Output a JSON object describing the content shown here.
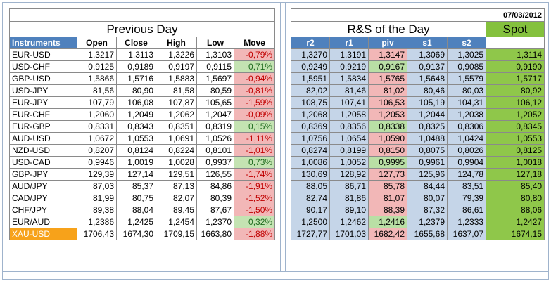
{
  "left": {
    "title": "Previous Day",
    "headers": [
      "Instruments",
      "Open",
      "Close",
      "High",
      "Low",
      "Move"
    ]
  },
  "right": {
    "title": "R&S of the Day",
    "spot_title": "Spot",
    "date": "07/03/2012",
    "headers": [
      "r2",
      "r1",
      "piv",
      "s1",
      "s2"
    ]
  },
  "rows": [
    {
      "inst": "EUR-USD",
      "open": "1,3217",
      "close": "1,3113",
      "high": "1,3226",
      "low": "1,3103",
      "move": "-0,79%",
      "r2": "1,3270",
      "r1": "1,3191",
      "piv": "1,3147",
      "s1": "1,3069",
      "s2": "1,3025",
      "spot": "1,3114"
    },
    {
      "inst": "USD-CHF",
      "open": "0,9125",
      "close": "0,9189",
      "high": "0,9197",
      "low": "0,9115",
      "move": "0,71%",
      "r2": "0,9249",
      "r1": "0,9219",
      "piv": "0,9167",
      "s1": "0,9137",
      "s2": "0,9085",
      "spot": "0,9190"
    },
    {
      "inst": "GBP-USD",
      "open": "1,5866",
      "close": "1,5716",
      "high": "1,5883",
      "low": "1,5697",
      "move": "-0,94%",
      "r2": "1,5951",
      "r1": "1,5834",
      "piv": "1,5765",
      "s1": "1,5648",
      "s2": "1,5579",
      "spot": "1,5717"
    },
    {
      "inst": "USD-JPY",
      "open": "81,56",
      "close": "80,90",
      "high": "81,58",
      "low": "80,59",
      "move": "-0,81%",
      "r2": "82,02",
      "r1": "81,46",
      "piv": "81,02",
      "s1": "80,46",
      "s2": "80,03",
      "spot": "80,92"
    },
    {
      "inst": "EUR-JPY",
      "open": "107,79",
      "close": "106,08",
      "high": "107,87",
      "low": "105,65",
      "move": "-1,59%",
      "r2": "108,75",
      "r1": "107,41",
      "piv": "106,53",
      "s1": "105,19",
      "s2": "104,31",
      "spot": "106,12"
    },
    {
      "inst": "EUR-CHF",
      "open": "1,2060",
      "close": "1,2049",
      "high": "1,2062",
      "low": "1,2047",
      "move": "-0,09%",
      "r2": "1,2068",
      "r1": "1,2058",
      "piv": "1,2053",
      "s1": "1,2044",
      "s2": "1,2038",
      "spot": "1,2052"
    },
    {
      "inst": "EUR-GBP",
      "open": "0,8331",
      "close": "0,8343",
      "high": "0,8351",
      "low": "0,8319",
      "move": "0,15%",
      "r2": "0,8369",
      "r1": "0,8356",
      "piv": "0,8338",
      "s1": "0,8325",
      "s2": "0,8306",
      "spot": "0,8345"
    },
    {
      "inst": "AUD-USD",
      "open": "1,0672",
      "close": "1,0553",
      "high": "1,0691",
      "low": "1,0526",
      "move": "-1,11%",
      "r2": "1,0756",
      "r1": "1,0654",
      "piv": "1,0590",
      "s1": "1,0488",
      "s2": "1,0424",
      "spot": "1,0553"
    },
    {
      "inst": "NZD-USD",
      "open": "0,8207",
      "close": "0,8124",
      "high": "0,8224",
      "low": "0,8101",
      "move": "-1,01%",
      "r2": "0,8274",
      "r1": "0,8199",
      "piv": "0,8150",
      "s1": "0,8075",
      "s2": "0,8026",
      "spot": "0,8125"
    },
    {
      "inst": "USD-CAD",
      "open": "0,9946",
      "close": "1,0019",
      "high": "1,0028",
      "low": "0,9937",
      "move": "0,73%",
      "r2": "1,0086",
      "r1": "1,0052",
      "piv": "0,9995",
      "s1": "0,9961",
      "s2": "0,9904",
      "spot": "1,0018"
    },
    {
      "inst": "GBP-JPY",
      "open": "129,39",
      "close": "127,14",
      "high": "129,51",
      "low": "126,55",
      "move": "-1,74%",
      "r2": "130,69",
      "r1": "128,92",
      "piv": "127,73",
      "s1": "125,96",
      "s2": "124,78",
      "spot": "127,18"
    },
    {
      "inst": "AUD/JPY",
      "open": "87,03",
      "close": "85,37",
      "high": "87,13",
      "low": "84,86",
      "move": "-1,91%",
      "r2": "88,05",
      "r1": "86,71",
      "piv": "85,78",
      "s1": "84,44",
      "s2": "83,51",
      "spot": "85,40"
    },
    {
      "inst": "CAD/JPY",
      "open": "81,99",
      "close": "80,75",
      "high": "82,07",
      "low": "80,39",
      "move": "-1,52%",
      "r2": "82,74",
      "r1": "81,86",
      "piv": "81,07",
      "s1": "80,07",
      "s2": "79,39",
      "spot": "80,80"
    },
    {
      "inst": "CHF/JPY",
      "open": "89,38",
      "close": "88,04",
      "high": "89,45",
      "low": "87,67",
      "move": "-1,50%",
      "r2": "90,17",
      "r1": "89,10",
      "piv": "88,39",
      "s1": "87,32",
      "s2": "86,61",
      "spot": "88,06"
    },
    {
      "inst": "EUR/AUD",
      "open": "1,2386",
      "close": "1,2425",
      "high": "1,2454",
      "low": "1,2370",
      "move": "0,32%",
      "r2": "1,2500",
      "r1": "1,2462",
      "piv": "1,2416",
      "s1": "1,2379",
      "s2": "1,2333",
      "spot": "1,2427"
    },
    {
      "inst": "XAU-USD",
      "open": "1706,43",
      "close": "1674,30",
      "high": "1709,15",
      "low": "1663,80",
      "move": "-1,88%",
      "r2": "1727,77",
      "r1": "1701,03",
      "piv": "1682,42",
      "s1": "1655,68",
      "s2": "1637,07",
      "spot": "1674,15"
    }
  ],
  "colors": {
    "header_blue": "#4f81bd",
    "resistance_blue": "#c5d5e8",
    "negative_red": "#f2b7b7",
    "positive_green": "#c4e3b2",
    "spot_green": "#8fc74a",
    "gold": "#f7a21a"
  }
}
